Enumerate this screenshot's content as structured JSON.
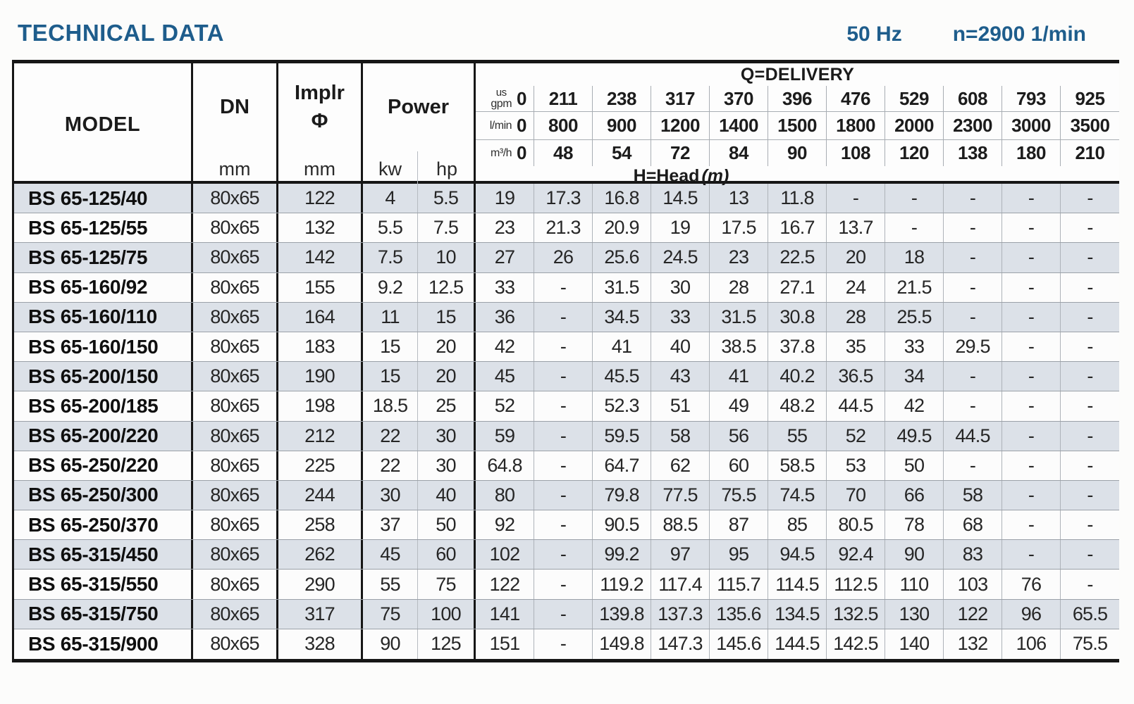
{
  "header": {
    "title": "TECHNICAL DATA",
    "frequency": "50 Hz",
    "speed": "n=2900 1/min"
  },
  "table": {
    "columns": {
      "model": "MODEL",
      "dn": "DN",
      "impeller_line1": "Implr",
      "impeller_line2": "Φ",
      "power": "Power",
      "unit_mm": "mm",
      "unit_kw": "kw",
      "unit_hp": "hp"
    },
    "delivery": {
      "title": "Q=DELIVERY",
      "head_label": "H=Head",
      "head_unit": "(m)",
      "unit_rows": [
        {
          "label_top": "us",
          "label": "gpm",
          "values": [
            "0",
            "211",
            "238",
            "317",
            "370",
            "396",
            "476",
            "529",
            "608",
            "793",
            "925"
          ]
        },
        {
          "label_top": "",
          "label": "l/min",
          "values": [
            "0",
            "800",
            "900",
            "1200",
            "1400",
            "1500",
            "1800",
            "2000",
            "2300",
            "3000",
            "3500"
          ]
        },
        {
          "label_top": "",
          "label": "m³/h",
          "values": [
            "0",
            "48",
            "54",
            "72",
            "84",
            "90",
            "108",
            "120",
            "138",
            "180",
            "210"
          ]
        }
      ]
    },
    "rows": [
      {
        "model": "BS 65-125/40",
        "dn": "80x65",
        "impeller": "122",
        "kw": "4",
        "hp": "5.5",
        "head": [
          "19",
          "17.3",
          "16.8",
          "14.5",
          "13",
          "11.8",
          "-",
          "-",
          "-",
          "-",
          "-"
        ]
      },
      {
        "model": "BS 65-125/55",
        "dn": "80x65",
        "impeller": "132",
        "kw": "5.5",
        "hp": "7.5",
        "head": [
          "23",
          "21.3",
          "20.9",
          "19",
          "17.5",
          "16.7",
          "13.7",
          "-",
          "-",
          "-",
          "-"
        ]
      },
      {
        "model": "BS 65-125/75",
        "dn": "80x65",
        "impeller": "142",
        "kw": "7.5",
        "hp": "10",
        "head": [
          "27",
          "26",
          "25.6",
          "24.5",
          "23",
          "22.5",
          "20",
          "18",
          "-",
          "-",
          "-"
        ]
      },
      {
        "model": "BS 65-160/92",
        "dn": "80x65",
        "impeller": "155",
        "kw": "9.2",
        "hp": "12.5",
        "head": [
          "33",
          "-",
          "31.5",
          "30",
          "28",
          "27.1",
          "24",
          "21.5",
          "-",
          "-",
          "-"
        ]
      },
      {
        "model": "BS 65-160/110",
        "dn": "80x65",
        "impeller": "164",
        "kw": "11",
        "hp": "15",
        "head": [
          "36",
          "-",
          "34.5",
          "33",
          "31.5",
          "30.8",
          "28",
          "25.5",
          "-",
          "-",
          "-"
        ]
      },
      {
        "model": "BS 65-160/150",
        "dn": "80x65",
        "impeller": "183",
        "kw": "15",
        "hp": "20",
        "head": [
          "42",
          "-",
          "41",
          "40",
          "38.5",
          "37.8",
          "35",
          "33",
          "29.5",
          "-",
          "-"
        ]
      },
      {
        "model": "BS 65-200/150",
        "dn": "80x65",
        "impeller": "190",
        "kw": "15",
        "hp": "20",
        "head": [
          "45",
          "-",
          "45.5",
          "43",
          "41",
          "40.2",
          "36.5",
          "34",
          "-",
          "-",
          "-"
        ]
      },
      {
        "model": "BS 65-200/185",
        "dn": "80x65",
        "impeller": "198",
        "kw": "18.5",
        "hp": "25",
        "head": [
          "52",
          "-",
          "52.3",
          "51",
          "49",
          "48.2",
          "44.5",
          "42",
          "-",
          "-",
          "-"
        ]
      },
      {
        "model": "BS 65-200/220",
        "dn": "80x65",
        "impeller": "212",
        "kw": "22",
        "hp": "30",
        "head": [
          "59",
          "-",
          "59.5",
          "58",
          "56",
          "55",
          "52",
          "49.5",
          "44.5",
          "-",
          "-"
        ]
      },
      {
        "model": "BS 65-250/220",
        "dn": "80x65",
        "impeller": "225",
        "kw": "22",
        "hp": "30",
        "head": [
          "64.8",
          "-",
          "64.7",
          "62",
          "60",
          "58.5",
          "53",
          "50",
          "-",
          "-",
          "-"
        ]
      },
      {
        "model": "BS 65-250/300",
        "dn": "80x65",
        "impeller": "244",
        "kw": "30",
        "hp": "40",
        "head": [
          "80",
          "-",
          "79.8",
          "77.5",
          "75.5",
          "74.5",
          "70",
          "66",
          "58",
          "-",
          "-"
        ]
      },
      {
        "model": "BS 65-250/370",
        "dn": "80x65",
        "impeller": "258",
        "kw": "37",
        "hp": "50",
        "head": [
          "92",
          "-",
          "90.5",
          "88.5",
          "87",
          "85",
          "80.5",
          "78",
          "68",
          "-",
          "-"
        ]
      },
      {
        "model": "BS 65-315/450",
        "dn": "80x65",
        "impeller": "262",
        "kw": "45",
        "hp": "60",
        "head": [
          "102",
          "-",
          "99.2",
          "97",
          "95",
          "94.5",
          "92.4",
          "90",
          "83",
          "-",
          "-"
        ]
      },
      {
        "model": "BS 65-315/550",
        "dn": "80x65",
        "impeller": "290",
        "kw": "55",
        "hp": "75",
        "head": [
          "122",
          "-",
          "119.2",
          "117.4",
          "115.7",
          "114.5",
          "112.5",
          "110",
          "103",
          "76",
          "-"
        ]
      },
      {
        "model": "BS 65-315/750",
        "dn": "80x65",
        "impeller": "317",
        "kw": "75",
        "hp": "100",
        "head": [
          "141",
          "-",
          "139.8",
          "137.3",
          "135.6",
          "134.5",
          "132.5",
          "130",
          "122",
          "96",
          "65.5"
        ]
      },
      {
        "model": "BS 65-315/900",
        "dn": "80x65",
        "impeller": "328",
        "kw": "90",
        "hp": "125",
        "head": [
          "151",
          "-",
          "149.8",
          "147.3",
          "145.6",
          "144.5",
          "142.5",
          "140",
          "132",
          "106",
          "75.5"
        ]
      }
    ]
  }
}
